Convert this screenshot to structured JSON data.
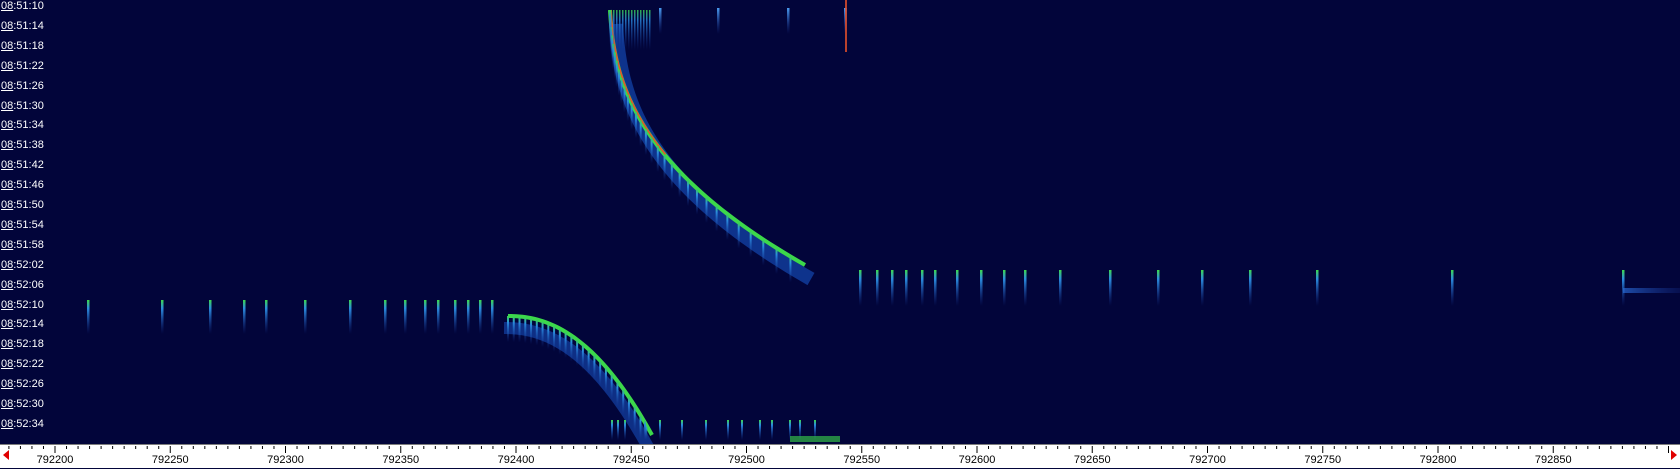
{
  "palette": {
    "background": "#02053a",
    "trace_core": "#e8502a",
    "trace_mid": "#3cd84a",
    "trace_low": "#2a6cd8",
    "axis_bg": "#ffffff",
    "axis_text": "#000000",
    "time_text": "#ffffff",
    "arrow": "#e00000"
  },
  "time_axis": {
    "labels": [
      {
        "hh": "08",
        "rest": ":51:10"
      },
      {
        "hh": "08",
        "rest": ":51:14"
      },
      {
        "hh": "08",
        "rest": ":51:18"
      },
      {
        "hh": "08",
        "rest": ":51:22"
      },
      {
        "hh": "08",
        "rest": ":51:26"
      },
      {
        "hh": "08",
        "rest": ":51:30"
      },
      {
        "hh": "08",
        "rest": ":51:34"
      },
      {
        "hh": "08",
        "rest": ":51:38"
      },
      {
        "hh": "08",
        "rest": ":51:42"
      },
      {
        "hh": "08",
        "rest": ":51:46"
      },
      {
        "hh": "08",
        "rest": ":51:50"
      },
      {
        "hh": "08",
        "rest": ":51:54"
      },
      {
        "hh": "08",
        "rest": ":51:58"
      },
      {
        "hh": "08",
        "rest": ":52:02"
      },
      {
        "hh": "08",
        "rest": ":52:06"
      },
      {
        "hh": "08",
        "rest": ":52:10"
      },
      {
        "hh": "08",
        "rest": ":52:14"
      },
      {
        "hh": "08",
        "rest": ":52:18"
      },
      {
        "hh": "08",
        "rest": ":52:22"
      },
      {
        "hh": "08",
        "rest": ":52:26"
      },
      {
        "hh": "08",
        "rest": ":52:30"
      },
      {
        "hh": "08",
        "rest": ":52:34"
      }
    ]
  },
  "freq_axis": {
    "min": 792180,
    "max": 792905,
    "labels": [
      "792200",
      "792250",
      "792300",
      "792350",
      "792400",
      "792450",
      "792500",
      "792550",
      "792600",
      "792650",
      "792700",
      "792750",
      "792800",
      "792850"
    ],
    "major_step": 50,
    "minor_step": 5
  }
}
